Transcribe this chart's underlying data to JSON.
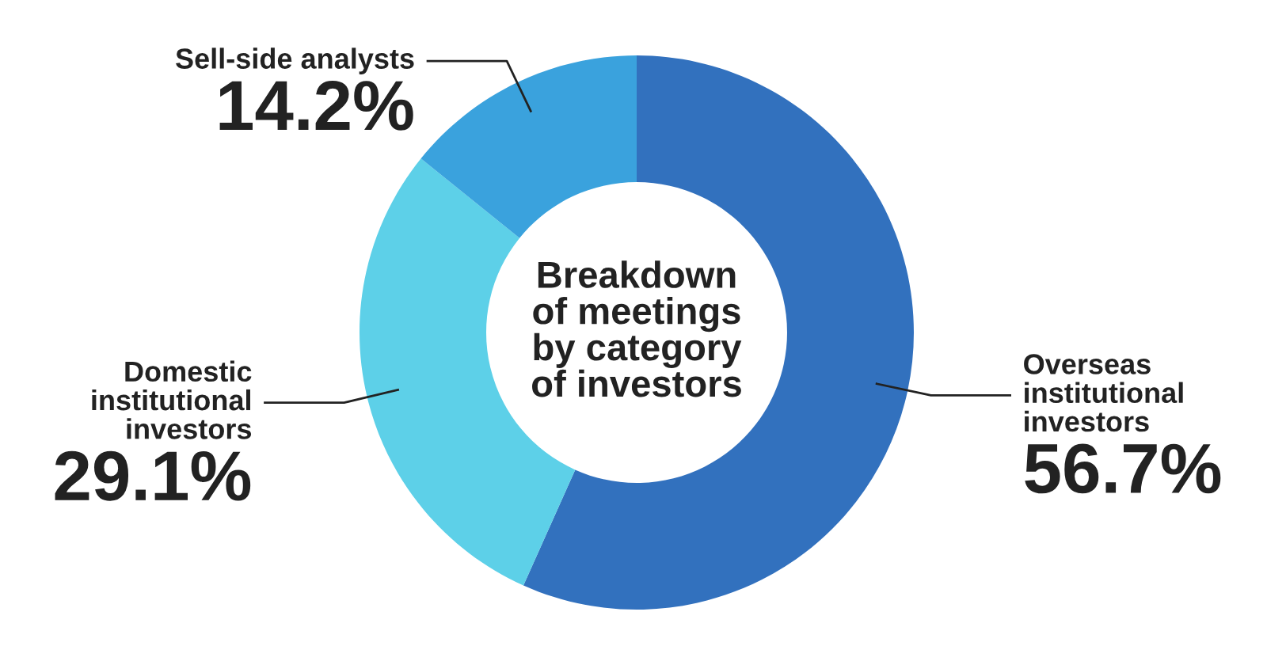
{
  "chart_data": {
    "type": "donut",
    "title": "Breakdown\nof meetings\nby category\nof investors",
    "categories": [
      "Overseas\ninstitutional\ninvestors",
      "Domestic\ninstitutional\ninvestors",
      "Sell-side analysts"
    ],
    "values": [
      56.7,
      29.1,
      14.2
    ],
    "colors": [
      "#3271be",
      "#5dd0e8",
      "#3aa2dd"
    ],
    "value_labels": [
      "56.7%",
      "29.1%",
      "14.2%"
    ]
  }
}
